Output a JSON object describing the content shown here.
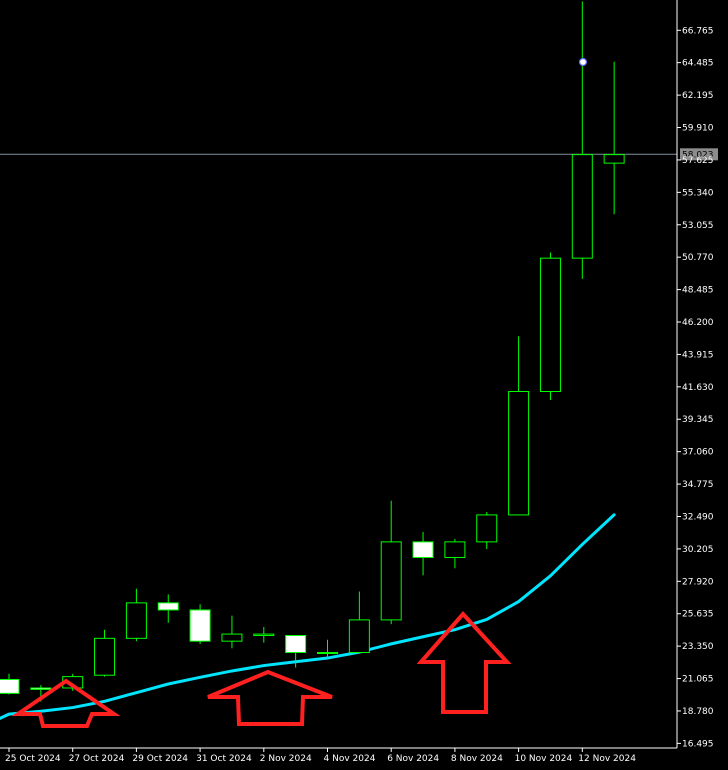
{
  "chart_data": {
    "type": "candlestick",
    "y_ticks": [
      "66.765",
      "64.485",
      "62.195",
      "59.910",
      "57.625",
      "55.340",
      "53.055",
      "50.770",
      "48.485",
      "46.200",
      "43.915",
      "41.630",
      "39.345",
      "37.060",
      "34.775",
      "32.490",
      "30.205",
      "27.920",
      "25.635",
      "23.350",
      "21.065",
      "18.780",
      "16.495"
    ],
    "x_ticks": [
      "25 Oct 2024",
      "27 Oct 2024",
      "29 Oct 2024",
      "31 Oct 2024",
      "2 Nov 2024",
      "4 Nov 2024",
      "6 Nov 2024",
      "8 Nov 2024",
      "10 Nov 2024",
      "12 Nov 2024"
    ],
    "current_price": "58.023",
    "ylim": [
      14.9,
      68.9
    ],
    "candles": [
      {
        "o": 21.0,
        "h": 21.4,
        "l": 19.94,
        "c": 20.02
      },
      {
        "o": 20.4,
        "h": 20.6,
        "l": 19.44,
        "c": 20.3
      },
      {
        "o": 20.4,
        "h": 21.4,
        "l": 20.2,
        "c": 21.2
      },
      {
        "o": 21.3,
        "h": 24.5,
        "l": 21.2,
        "c": 23.9
      },
      {
        "o": 23.9,
        "h": 27.4,
        "l": 23.7,
        "c": 26.4
      },
      {
        "o": 26.4,
        "h": 27.0,
        "l": 25.0,
        "c": 25.9
      },
      {
        "o": 25.9,
        "h": 26.3,
        "l": 23.5,
        "c": 23.7
      },
      {
        "o": 23.7,
        "h": 25.5,
        "l": 23.2,
        "c": 24.2
      },
      {
        "o": 24.1,
        "h": 24.7,
        "l": 23.6,
        "c": 24.2
      },
      {
        "o": 24.1,
        "h": 24.1,
        "l": 21.84,
        "c": 22.9
      },
      {
        "o": 22.9,
        "h": 23.8,
        "l": 22.4,
        "c": 22.9
      },
      {
        "o": 22.9,
        "h": 27.2,
        "l": 22.9,
        "c": 25.2
      },
      {
        "o": 25.2,
        "h": 33.6,
        "l": 24.9,
        "c": 30.7
      },
      {
        "o": 30.7,
        "h": 31.4,
        "l": 28.34,
        "c": 29.6
      },
      {
        "o": 29.6,
        "h": 30.9,
        "l": 28.84,
        "c": 30.7
      },
      {
        "o": 30.7,
        "h": 32.8,
        "l": 30.2,
        "c": 32.6
      },
      {
        "o": 32.6,
        "h": 45.2,
        "l": 32.6,
        "c": 41.3
      },
      {
        "o": 41.3,
        "h": 51.1,
        "l": 40.7,
        "c": 50.7
      },
      {
        "o": 50.7,
        "h": 68.8,
        "l": 49.24,
        "c": 58.0
      },
      {
        "o": 57.4,
        "h": 64.55,
        "l": 53.8,
        "c": 58.0
      }
    ],
    "moving_average": [
      18.56,
      18.76,
      19.02,
      19.46,
      20.07,
      20.68,
      21.15,
      21.6,
      21.98,
      22.25,
      22.51,
      22.93,
      23.51,
      24.01,
      24.51,
      25.23,
      26.49,
      28.31,
      30.52,
      32.61
    ],
    "colors": {
      "background": "#000000",
      "candle": "#00ff00",
      "bull_body": "#000000",
      "bear_body": "#ffffff",
      "moving_average": "#00e5ff",
      "price_line": "#8090a0",
      "price_label": "#8c8c8c",
      "arrow": "#ff2020"
    }
  }
}
